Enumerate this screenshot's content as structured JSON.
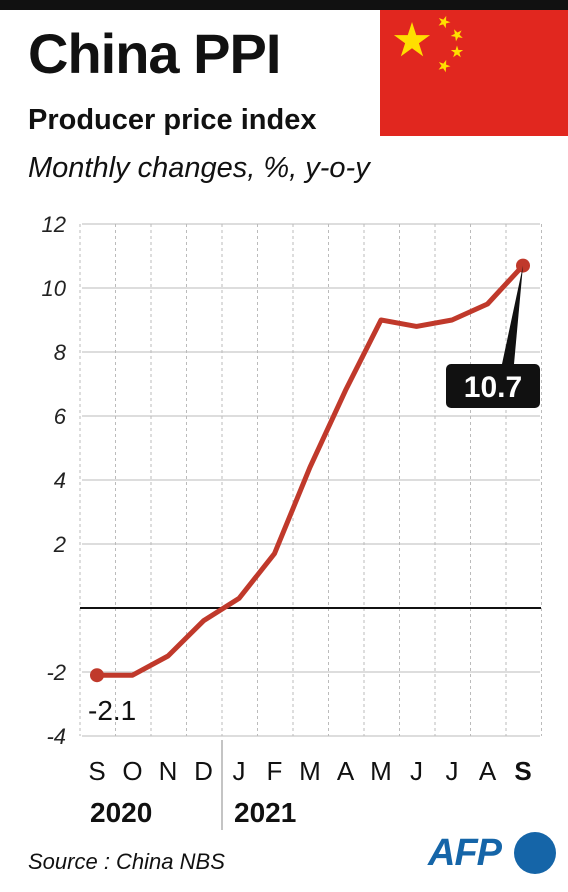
{
  "header": {
    "title": "China PPI",
    "subtitle": "Producer price index",
    "units": "Monthly changes, %, y-o-y"
  },
  "flag": {
    "description_icon": "china-flag-icon",
    "red": "#e1271f",
    "yellow": "#ffde00"
  },
  "chart_data": {
    "type": "line",
    "categories": [
      "S",
      "O",
      "N",
      "D",
      "J",
      "F",
      "M",
      "A",
      "M",
      "J",
      "J",
      "A",
      "S"
    ],
    "year_labels": [
      "2020",
      "2021"
    ],
    "series": [
      {
        "values": [
          -2.1,
          -2.1,
          -1.5,
          -0.4,
          0.3,
          1.7,
          4.4,
          6.8,
          9.0,
          8.8,
          9.0,
          9.5,
          10.7
        ],
        "color": "#c0392b"
      }
    ],
    "ylim": [
      -4,
      12
    ],
    "yticks": [
      "12",
      "10",
      "8",
      "6",
      "4",
      "2",
      "",
      "-2",
      "-4"
    ],
    "annotations": {
      "first": "-2.1",
      "last": "10.7"
    },
    "grid": true
  },
  "footer": {
    "source": "Source : China NBS",
    "logo": "AFP"
  }
}
